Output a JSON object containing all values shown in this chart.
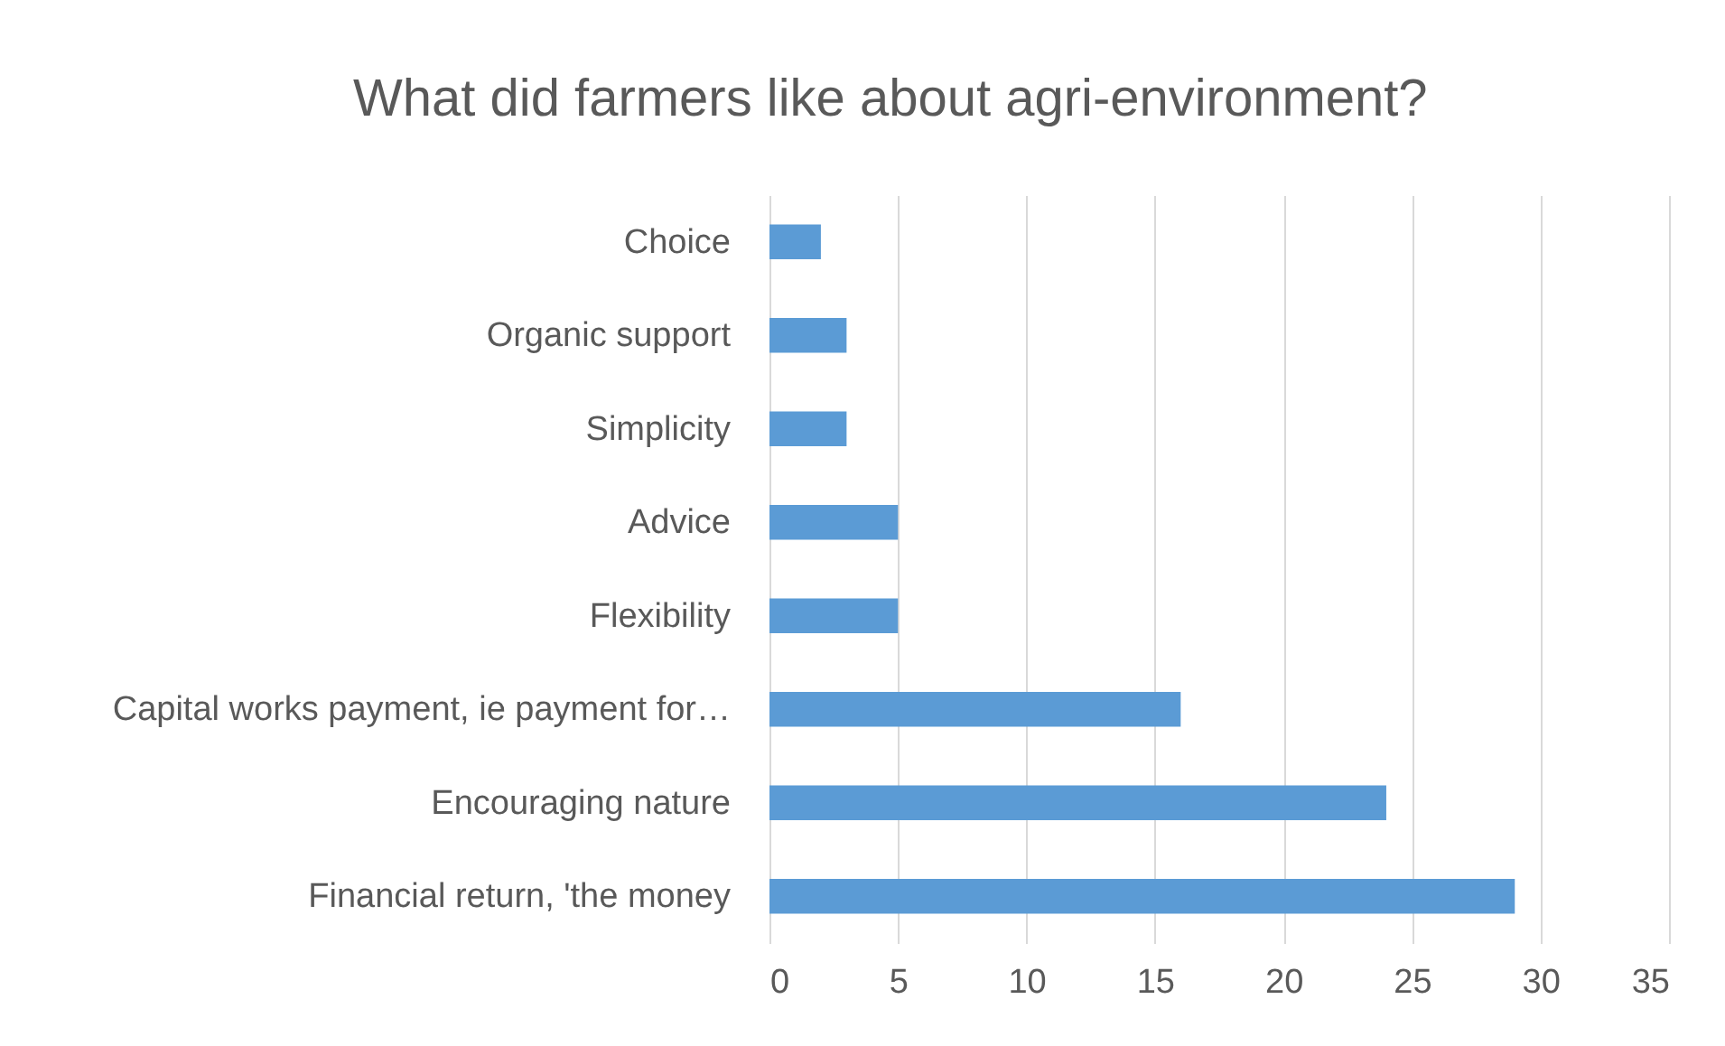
{
  "chart_data": {
    "type": "bar",
    "orientation": "horizontal",
    "title": "What did farmers like about agri-environment?",
    "categories": [
      "Choice",
      "Organic support",
      "Simplicity",
      "Advice",
      "Flexibility",
      "Capital works payment, ie payment for…",
      "Encouraging nature",
      "Financial return, 'the money"
    ],
    "values": [
      2,
      3,
      3,
      5,
      5,
      16,
      24,
      29
    ],
    "color": "#5b9bd5",
    "xlim": [
      0,
      35
    ],
    "xticks": [
      0,
      5,
      10,
      15,
      20,
      25,
      30,
      35
    ],
    "grid": "x"
  }
}
